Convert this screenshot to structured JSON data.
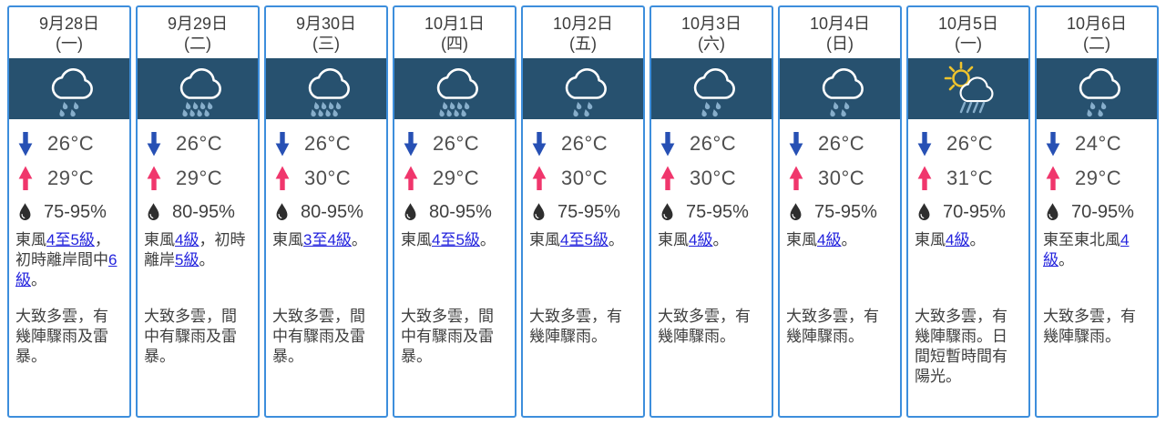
{
  "colors": {
    "card_border": "#3d8edc",
    "icon_band_bg": "#27516f",
    "link_blue": "#2323dd",
    "min_arrow_blue": "#2750b4",
    "max_arrow_pink": "#f0366c",
    "cloud_white": "#ffffff",
    "rain_drop_blue": "#87aecb",
    "sun_yellow": "#eec32d",
    "humidity_drop_dark": "#2e2e2e"
  },
  "cards": [
    {
      "date": "9月28日",
      "weekday": "(一)",
      "icon": "light-rain",
      "min_temp": "26°C",
      "max_temp": "29°C",
      "humidity": "75-95%",
      "wind": [
        {
          "t": "東風"
        },
        {
          "t": "4至5級",
          "link": true
        },
        {
          "t": "，初時離岸間中"
        },
        {
          "t": "6級",
          "link": true
        },
        {
          "t": "。"
        }
      ],
      "forecast": "大致多雲，有幾陣驟雨及雷暴。"
    },
    {
      "date": "9月29日",
      "weekday": "(二)",
      "icon": "heavy-rain",
      "min_temp": "26°C",
      "max_temp": "29°C",
      "humidity": "80-95%",
      "wind": [
        {
          "t": "東風"
        },
        {
          "t": "4級",
          "link": true
        },
        {
          "t": "，初時離岸"
        },
        {
          "t": "5級",
          "link": true
        },
        {
          "t": "。"
        }
      ],
      "forecast": "大致多雲，間中有驟雨及雷暴。"
    },
    {
      "date": "9月30日",
      "weekday": "(三)",
      "icon": "heavy-rain",
      "min_temp": "26°C",
      "max_temp": "30°C",
      "humidity": "80-95%",
      "wind": [
        {
          "t": "東風"
        },
        {
          "t": "3至4級",
          "link": true
        },
        {
          "t": "。"
        }
      ],
      "forecast": "大致多雲，間中有驟雨及雷暴。"
    },
    {
      "date": "10月1日",
      "weekday": "(四)",
      "icon": "heavy-rain",
      "min_temp": "26°C",
      "max_temp": "29°C",
      "humidity": "80-95%",
      "wind": [
        {
          "t": "東風"
        },
        {
          "t": "4至5級",
          "link": true
        },
        {
          "t": "。"
        }
      ],
      "forecast": "大致多雲，間中有驟雨及雷暴。"
    },
    {
      "date": "10月2日",
      "weekday": "(五)",
      "icon": "light-rain",
      "min_temp": "26°C",
      "max_temp": "30°C",
      "humidity": "75-95%",
      "wind": [
        {
          "t": "東風"
        },
        {
          "t": "4至5級",
          "link": true
        },
        {
          "t": "。"
        }
      ],
      "forecast": "大致多雲，有幾陣驟雨。"
    },
    {
      "date": "10月3日",
      "weekday": "(六)",
      "icon": "light-rain",
      "min_temp": "26°C",
      "max_temp": "30°C",
      "humidity": "75-95%",
      "wind": [
        {
          "t": "東風"
        },
        {
          "t": "4級",
          "link": true
        },
        {
          "t": "。"
        }
      ],
      "forecast": "大致多雲，有幾陣驟雨。"
    },
    {
      "date": "10月4日",
      "weekday": "(日)",
      "icon": "light-rain",
      "min_temp": "26°C",
      "max_temp": "30°C",
      "humidity": "75-95%",
      "wind": [
        {
          "t": "東風"
        },
        {
          "t": "4級",
          "link": true
        },
        {
          "t": "。"
        }
      ],
      "forecast": "大致多雲，有幾陣驟雨。"
    },
    {
      "date": "10月5日",
      "weekday": "(一)",
      "icon": "sun-shower",
      "min_temp": "26°C",
      "max_temp": "31°C",
      "humidity": "70-95%",
      "wind": [
        {
          "t": "東風"
        },
        {
          "t": "4級",
          "link": true
        },
        {
          "t": "。"
        }
      ],
      "forecast": "大致多雲，有幾陣驟雨。日間短暫時間有陽光。"
    },
    {
      "date": "10月6日",
      "weekday": "(二)",
      "icon": "light-rain",
      "min_temp": "24°C",
      "max_temp": "29°C",
      "humidity": "70-95%",
      "wind": [
        {
          "t": "東至東北風"
        },
        {
          "t": "4級",
          "link": true
        },
        {
          "t": "。"
        }
      ],
      "forecast": "大致多雲，有幾陣驟雨。"
    }
  ]
}
